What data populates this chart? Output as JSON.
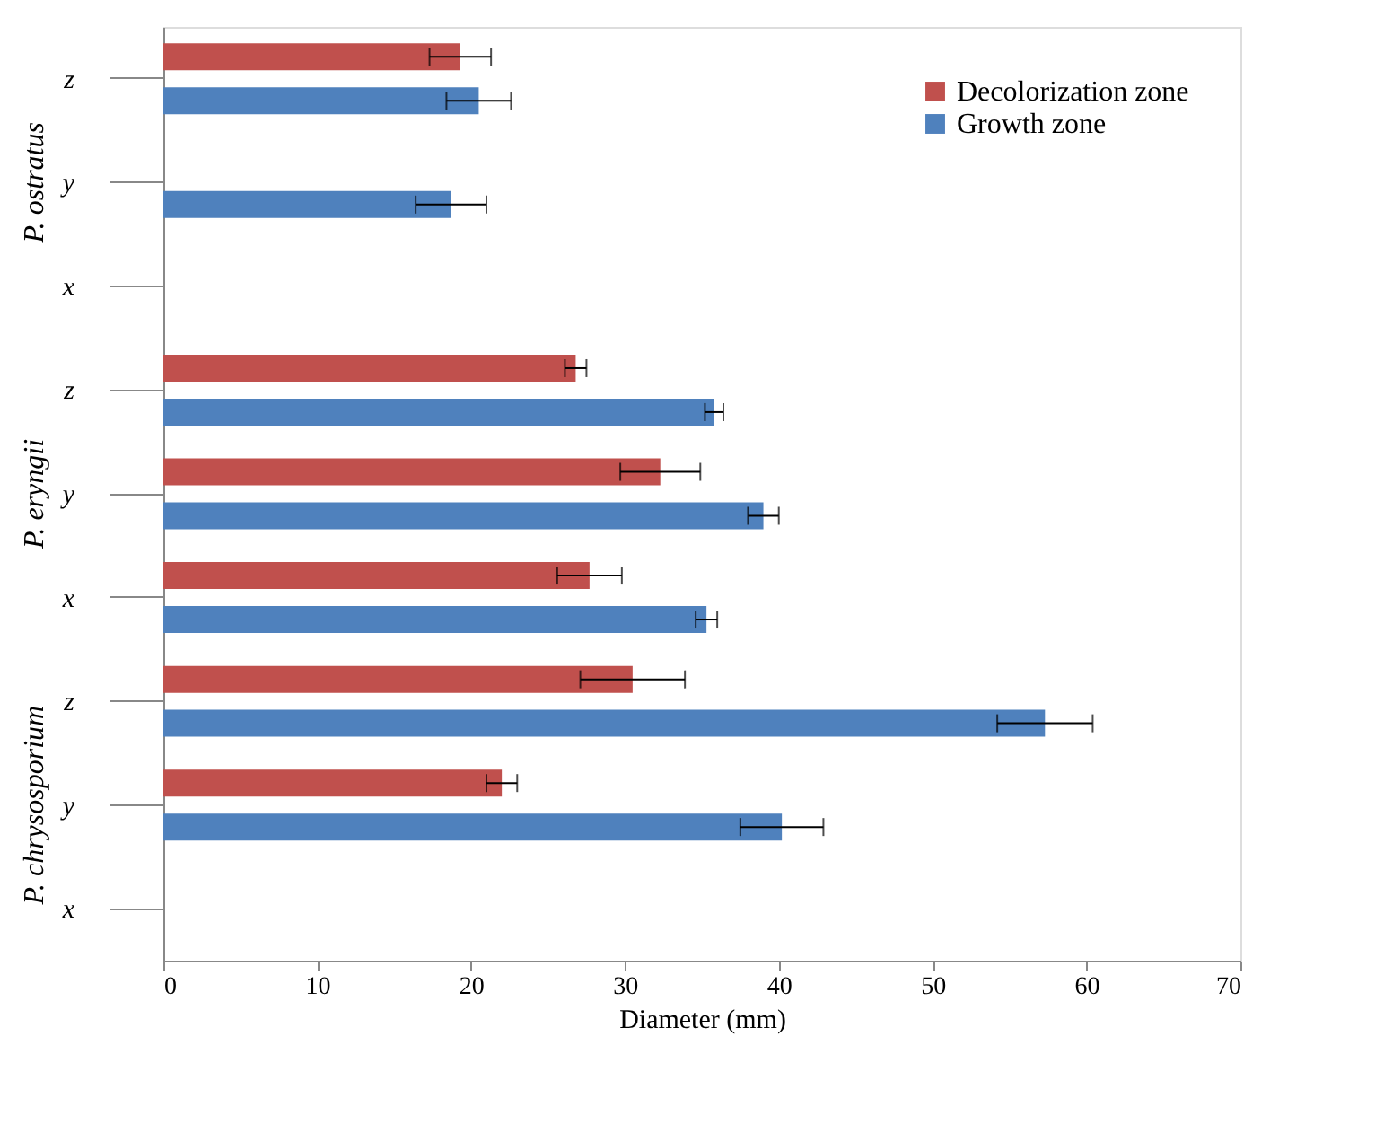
{
  "chart_data": {
    "type": "bar",
    "orientation": "horizontal",
    "xlabel": "Diameter (mm)",
    "categories": [
      "z",
      "y",
      "x",
      "z",
      "y",
      "x",
      "z",
      "y",
      "x"
    ],
    "annotations": [
      "P. ostratus",
      "P. eryngii",
      "P. chrysosporium"
    ],
    "series": [
      {
        "name": "Decolorization zone",
        "color": "#c0504d",
        "values": [
          19.3,
          null,
          null,
          26.8,
          32.3,
          27.7,
          30.5,
          22.0,
          null
        ],
        "errors": [
          2.0,
          null,
          null,
          0.7,
          2.6,
          2.1,
          3.4,
          1.0,
          null
        ]
      },
      {
        "name": "Growth zone",
        "color": "#4f81bd",
        "values": [
          20.5,
          18.7,
          null,
          35.8,
          39.0,
          35.3,
          57.3,
          40.2,
          null
        ],
        "errors": [
          2.1,
          2.3,
          null,
          0.6,
          1.0,
          0.7,
          3.1,
          2.7,
          null
        ]
      }
    ],
    "xlim": [
      0,
      70
    ],
    "xticks": [
      0,
      10,
      20,
      30,
      40,
      50,
      60,
      70
    ],
    "grid": false,
    "legend": "top right"
  }
}
